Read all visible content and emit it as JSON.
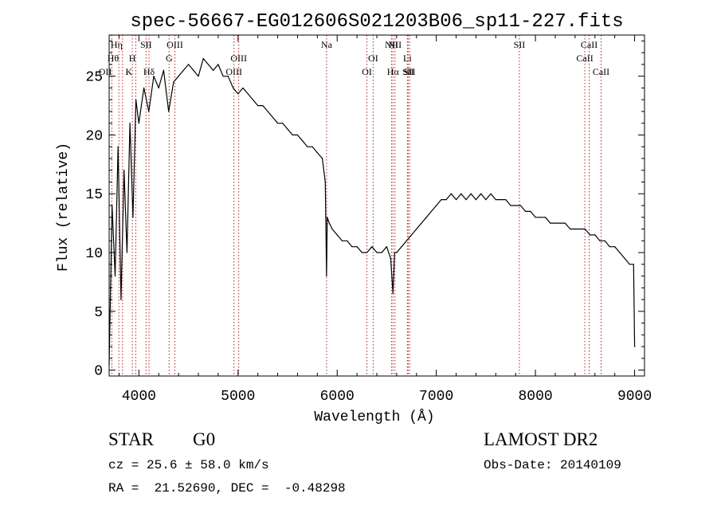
{
  "chart_data": {
    "type": "line",
    "title": "spec-56667-EG012606S021203B06_sp11-227.fits",
    "xlabel": "Wavelength (Å)",
    "ylabel": "Flux (relative)",
    "xlim": [
      3700,
      9100
    ],
    "ylim": [
      -0.5,
      28.5
    ],
    "x_ticks": [
      4000,
      5000,
      6000,
      7000,
      8000,
      9000
    ],
    "y_ticks": [
      0,
      5,
      10,
      15,
      20,
      25
    ],
    "grid": false,
    "line_color": "#000000",
    "marker_color": "#b22222",
    "series": [
      {
        "x": [
          3700,
          3730,
          3760,
          3790,
          3820,
          3850,
          3880,
          3910,
          3940,
          3970,
          4000,
          4050,
          4100,
          4150,
          4200,
          4250,
          4300,
          4350,
          4400,
          4450,
          4500,
          4550,
          4600,
          4650,
          4700,
          4750,
          4800,
          4850,
          4900,
          4950,
          5000,
          5050,
          5100,
          5150,
          5200,
          5250,
          5300,
          5350,
          5400,
          5450,
          5500,
          5550,
          5600,
          5650,
          5700,
          5750,
          5800,
          5850,
          5880,
          5893,
          5900,
          5920,
          5950,
          6000,
          6050,
          6100,
          6150,
          6200,
          6250,
          6300,
          6350,
          6400,
          6450,
          6500,
          6540,
          6563,
          6580,
          6600,
          6650,
          6700,
          6750,
          6800,
          6850,
          6900,
          6950,
          7000,
          7050,
          7100,
          7150,
          7200,
          7250,
          7300,
          7350,
          7400,
          7450,
          7500,
          7550,
          7600,
          7650,
          7700,
          7750,
          7800,
          7850,
          7900,
          7950,
          8000,
          8050,
          8100,
          8150,
          8200,
          8250,
          8300,
          8350,
          8400,
          8450,
          8500,
          8550,
          8600,
          8650,
          8700,
          8750,
          8800,
          8850,
          8900,
          8950,
          8990,
          9000
        ],
        "y": [
          0.5,
          14,
          8,
          19,
          6,
          17,
          10,
          21,
          13,
          23,
          21,
          24,
          22,
          25,
          24,
          25.5,
          22,
          24.5,
          25,
          25.5,
          26,
          25.5,
          25,
          26.5,
          26,
          25.5,
          26,
          25,
          25,
          24,
          23.5,
          24,
          23.5,
          23,
          22.5,
          22.5,
          22,
          21.5,
          21,
          21,
          20.5,
          20,
          20,
          19.5,
          19,
          19,
          18.5,
          18,
          16,
          8,
          13,
          12.5,
          12,
          11.5,
          11,
          11,
          10.5,
          10.5,
          10,
          10,
          10.5,
          10,
          10,
          10.5,
          9.5,
          6.5,
          10,
          10,
          10.5,
          11,
          11.5,
          12,
          12.5,
          13,
          13.5,
          14,
          14.5,
          14.5,
          15,
          14.5,
          15,
          14.5,
          15,
          14.5,
          15,
          14.5,
          15,
          14.5,
          14.5,
          14.5,
          14,
          14,
          14,
          13.5,
          13.5,
          13,
          13,
          13,
          12.5,
          12.5,
          12.5,
          12.5,
          12,
          12,
          12,
          12,
          11.5,
          11.5,
          11,
          11,
          10.5,
          10.5,
          10,
          9.5,
          9,
          9,
          2
        ]
      }
    ],
    "line_markers": [
      {
        "label": "OII",
        "x": 3727,
        "row": 3,
        "anchor": "end"
      },
      {
        "label": "Hθ",
        "x": 3798,
        "row": 2,
        "anchor": "end"
      },
      {
        "label": "Hη",
        "x": 3835,
        "row": 1,
        "anchor": "end"
      },
      {
        "label": "K",
        "x": 3934,
        "row": 3,
        "anchor": "end"
      },
      {
        "label": "H",
        "x": 3969,
        "row": 2,
        "anchor": "end"
      },
      {
        "label": "SII",
        "x": 4072,
        "row": 1,
        "anchor": "middle"
      },
      {
        "label": "Hδ",
        "x": 4102,
        "row": 3,
        "anchor": "middle"
      },
      {
        "label": "G",
        "x": 4305,
        "row": 2,
        "anchor": "middle"
      },
      {
        "label": "OIII",
        "x": 4363,
        "row": 1,
        "anchor": "middle"
      },
      {
        "label": "OIII",
        "x": 4959,
        "row": 3,
        "anchor": "middle"
      },
      {
        "label": "OIII",
        "x": 5007,
        "row": 2,
        "anchor": "middle"
      },
      {
        "label": "Na",
        "x": 5893,
        "row": 1,
        "anchor": "middle"
      },
      {
        "label": "OI",
        "x": 6300,
        "row": 3,
        "anchor": "middle"
      },
      {
        "label": "OI",
        "x": 6363,
        "row": 2,
        "anchor": "middle"
      },
      {
        "label": "NII",
        "x": 6548,
        "row": 1,
        "anchor": "middle"
      },
      {
        "label": "Hα",
        "x": 6563,
        "row": 3,
        "anchor": "middle"
      },
      {
        "label": "NII",
        "x": 6583,
        "row": 1,
        "anchor": "middle"
      },
      {
        "label": "Li",
        "x": 6708,
        "row": 2,
        "anchor": "middle"
      },
      {
        "label": "SII",
        "x": 6716,
        "row": 3,
        "anchor": "middle"
      },
      {
        "label": "SII",
        "x": 6731,
        "row": 3,
        "anchor": "middle"
      },
      {
        "label": "SII",
        "x": 7838,
        "row": 1,
        "anchor": "middle"
      },
      {
        "label": "CaII",
        "x": 8498,
        "row": 2,
        "anchor": "middle"
      },
      {
        "label": "CaII",
        "x": 8542,
        "row": 1,
        "anchor": "middle"
      },
      {
        "label": "CaII",
        "x": 8662,
        "row": 3,
        "anchor": "middle"
      }
    ]
  },
  "footer": {
    "object_class": "STAR",
    "subclass": "G0",
    "survey": "LAMOST DR2",
    "cz_line": "cz = 25.6 ± 58.0 km/s",
    "obs_date": "Obs-Date: 20140109",
    "radec_line": "RA =  21.52690, DEC =  -0.48298"
  }
}
